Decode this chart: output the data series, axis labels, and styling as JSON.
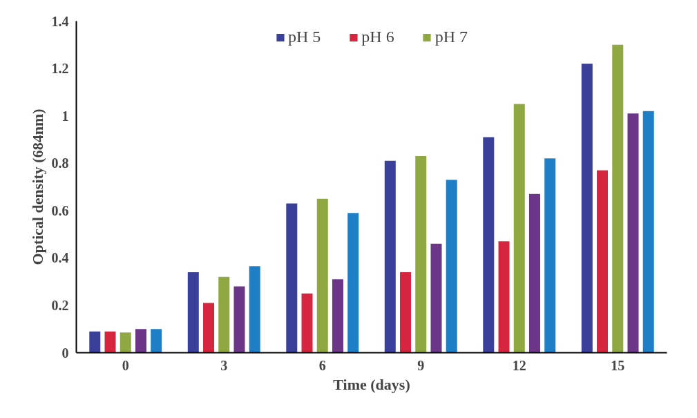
{
  "chart_data": {
    "type": "bar",
    "xlabel": "Time (days)",
    "ylabel": "Optical density (684nm)",
    "categories": [
      "0",
      "3",
      "6",
      "9",
      "12",
      "15"
    ],
    "series": [
      {
        "name": "pH 5",
        "color": "#3a3f9a",
        "values": [
          0.09,
          0.34,
          0.63,
          0.81,
          0.91,
          1.22
        ]
      },
      {
        "name": "pH 6",
        "color": "#d6263f",
        "values": [
          0.09,
          0.21,
          0.25,
          0.34,
          0.47,
          0.77
        ]
      },
      {
        "name": "pH 7",
        "color": "#8fa841",
        "values": [
          0.085,
          0.32,
          0.65,
          0.83,
          1.05,
          1.3
        ]
      },
      {
        "color": "#6b3588",
        "values": [
          0.1,
          0.28,
          0.31,
          0.46,
          0.67,
          1.01
        ]
      },
      {
        "color": "#1f7fc6",
        "values": [
          0.1,
          0.365,
          0.59,
          0.73,
          0.82,
          1.02
        ]
      }
    ],
    "ylim": [
      0,
      1.4
    ],
    "yticks": [
      0,
      {
        "value": 0.2,
        "label": "0.2"
      },
      {
        "value": 0.4,
        "label": "0.4"
      },
      {
        "value": 0.6,
        "label": "0.6"
      },
      {
        "value": 0.8,
        "label": "0.8"
      },
      1,
      {
        "value": 1.2,
        "label": "1.2"
      },
      {
        "value": 1.4,
        "label": "1.4"
      }
    ],
    "grid": false,
    "legend": "top"
  }
}
